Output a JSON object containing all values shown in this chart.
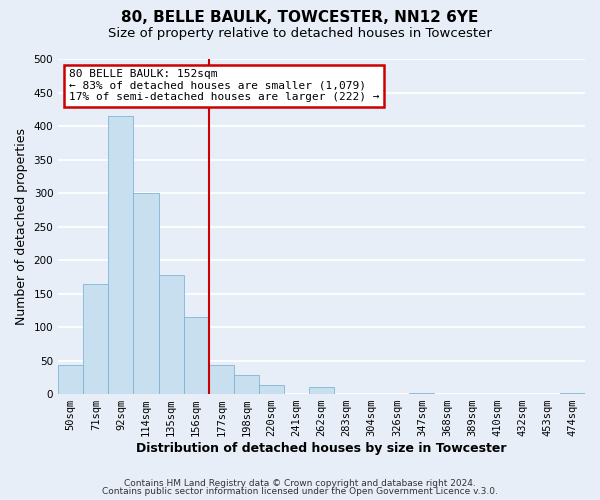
{
  "title": "80, BELLE BAULK, TOWCESTER, NN12 6YE",
  "subtitle": "Size of property relative to detached houses in Towcester",
  "xlabel": "Distribution of detached houses by size in Towcester",
  "ylabel": "Number of detached properties",
  "bar_labels": [
    "50sqm",
    "71sqm",
    "92sqm",
    "114sqm",
    "135sqm",
    "156sqm",
    "177sqm",
    "198sqm",
    "220sqm",
    "241sqm",
    "262sqm",
    "283sqm",
    "304sqm",
    "326sqm",
    "347sqm",
    "368sqm",
    "389sqm",
    "410sqm",
    "432sqm",
    "453sqm",
    "474sqm"
  ],
  "bar_values": [
    44,
    165,
    415,
    300,
    177,
    115,
    44,
    28,
    14,
    0,
    10,
    0,
    0,
    0,
    2,
    0,
    0,
    0,
    0,
    0,
    2
  ],
  "bar_color": "#c8dff0",
  "bar_edge_color": "#7fb5d5",
  "vline_x": 5.5,
  "vline_color": "#cc0000",
  "annotation_title": "80 BELLE BAULK: 152sqm",
  "annotation_line1": "← 83% of detached houses are smaller (1,079)",
  "annotation_line2": "17% of semi-detached houses are larger (222) →",
  "annotation_box_color": "white",
  "annotation_box_edge_color": "#cc0000",
  "ylim": [
    0,
    500
  ],
  "yticks": [
    0,
    50,
    100,
    150,
    200,
    250,
    300,
    350,
    400,
    450,
    500
  ],
  "footer1": "Contains HM Land Registry data © Crown copyright and database right 2024.",
  "footer2": "Contains public sector information licensed under the Open Government Licence v.3.0.",
  "background_color": "#e8eef8",
  "plot_bg_color": "#e8eef8",
  "grid_color": "white",
  "title_fontsize": 11,
  "subtitle_fontsize": 9.5,
  "axis_label_fontsize": 9,
  "tick_fontsize": 7.5,
  "footer_fontsize": 6.5
}
